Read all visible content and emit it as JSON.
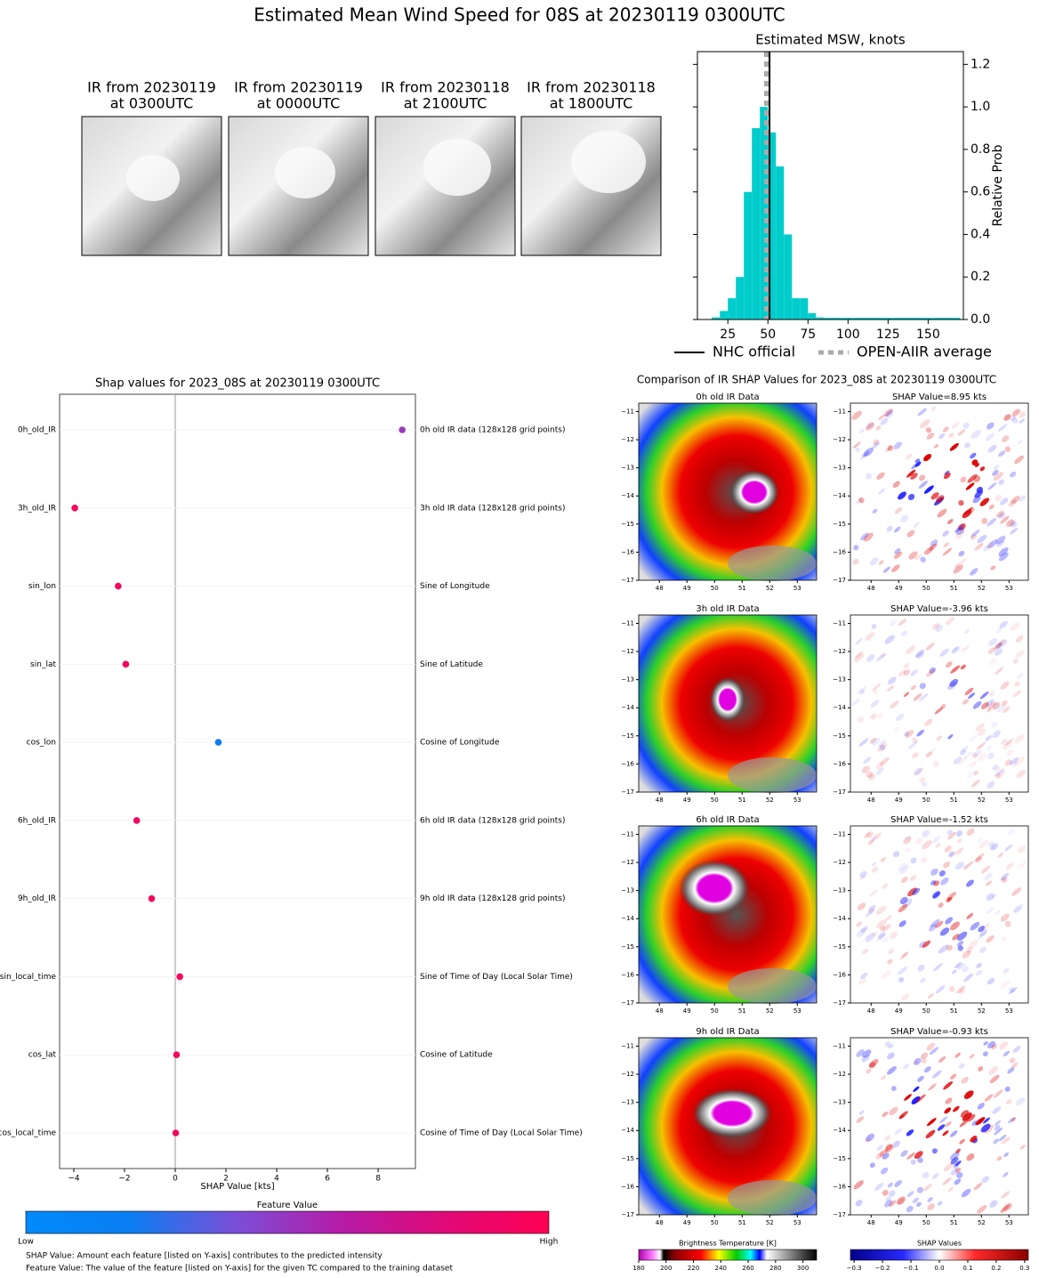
{
  "title": "Estimated Mean Wind Speed for 08S at 20230119 0300UTC",
  "ir_thumbnails": [
    {
      "lines": [
        "IR from 20230119",
        "at 0300UTC"
      ]
    },
    {
      "lines": [
        "IR from 20230119",
        "at 0000UTC"
      ]
    },
    {
      "lines": [
        "IR from 20230118",
        "at 2100UTC"
      ]
    },
    {
      "lines": [
        "IR from 20230118",
        "at 1800UTC"
      ]
    }
  ],
  "chart_data": [
    {
      "type": "histogram",
      "title": "Estimated MSW, knots",
      "ylabel": "Relative Prob",
      "color": "#00cccc",
      "bins": [
        10,
        15,
        20,
        25,
        30,
        35,
        40,
        45,
        50,
        55,
        60,
        65,
        70,
        75,
        80,
        85
      ],
      "counts": [
        0.0,
        0.01,
        0.04,
        0.1,
        0.2,
        0.6,
        0.9,
        1.0,
        0.88,
        0.72,
        0.4,
        0.1,
        0.1,
        0.03,
        0.01
      ],
      "xlim": [
        6,
        172
      ],
      "ylim": [
        0,
        1.26
      ],
      "xticks": [
        25,
        50,
        75,
        100,
        125,
        150
      ],
      "yticks": [
        {
          "value": 0,
          "label": "0.0"
        },
        0.2,
        0.4,
        0.6,
        0.8,
        {
          "value": 1,
          "label": "1.0"
        },
        1.2
      ],
      "reference_lines": [
        {
          "name": "NHC official",
          "value": 51,
          "color": "#000000",
          "style": "solid"
        },
        {
          "name": "OPEN-AIIR average",
          "value": 49,
          "color": "#aaaaaa",
          "style": "dotted"
        }
      ]
    },
    {
      "type": "dot",
      "title": "Shap values for 2023_08S at 20230119 0300UTC",
      "xlabel": "SHAP Value [kts]",
      "categories": [
        "0h_old_IR",
        "3h_old_IR",
        "sin_lon",
        "sin_lat",
        "cos_lon",
        "6h_old_IR",
        "9h_old_IR",
        "sin_local_time",
        "cos_lat",
        "cos_local_time"
      ],
      "descriptions": [
        "0h old IR data (128x128 grid points)",
        "3h old IR data (128x128 grid points)",
        "Sine of Longitude",
        "Sine of Latitude",
        "Cosine of Longitude",
        "6h old IR data (128x128 grid points)",
        "9h old IR data (128x128 grid points)",
        "Sine of Time of Day (Local Solar Time)",
        "Cosine of Latitude",
        "Cosine of Time of Day (Local Solar Time)"
      ],
      "values": [
        8.95,
        -3.96,
        -2.25,
        -1.95,
        1.7,
        -1.52,
        -0.93,
        0.18,
        0.05,
        0.02
      ],
      "colors": [
        "#9a3ab8",
        "#f5085e",
        "#f5085e",
        "#f5085e",
        "#0a7ef2",
        "#f5085e",
        "#f5085e",
        "#f5085e",
        "#f5085e",
        "#f5085e"
      ],
      "xlim": [
        -4.56,
        9.47
      ],
      "xticks": [
        {
          "value": -4,
          "label": "−4"
        },
        {
          "value": -2,
          "label": "−2"
        },
        0,
        2,
        4,
        6,
        8
      ],
      "colorbar": {
        "title": "Feature Value",
        "low_label": "Low",
        "high_label": "High",
        "colors": [
          "#008afb",
          "#0a7ef2",
          "#7a4fd8",
          "#b51ca8",
          "#e00a78",
          "#ff0052"
        ]
      },
      "notes": [
        "SHAP Value: Amount each feature [listed on Y-axis] contributes to the predicted intensity",
        "Feature Value: The value of the feature [listed on Y-axis] for the given TC compared to the training dataset"
      ]
    }
  ],
  "shap_comparison": {
    "title": "Comparison of IR SHAP Values for 2023_08S at 20230119 0300UTC",
    "panels": [
      {
        "ir_title": "0h old IR Data",
        "shap_title": "SHAP Value=8.95 kts"
      },
      {
        "ir_title": "3h old IR Data",
        "shap_title": "SHAP Value=-3.96 kts"
      },
      {
        "ir_title": "6h old IR Data",
        "shap_title": "SHAP Value=-1.52 kts"
      },
      {
        "ir_title": "9h old IR Data",
        "shap_title": "SHAP Value=-0.93 kts"
      }
    ],
    "xlim": [
      47.25,
      53.7
    ],
    "ylim": [
      -17,
      -10.7
    ],
    "xticks": [
      48,
      49,
      50,
      51,
      52,
      53
    ],
    "yticks": [
      {
        "value": -11,
        "label": "−11"
      },
      {
        "value": -12,
        "label": "−12"
      },
      {
        "value": -13,
        "label": "−13"
      },
      {
        "value": -14,
        "label": "−14"
      },
      {
        "value": -15,
        "label": "−15"
      },
      {
        "value": -16,
        "label": "−16"
      },
      {
        "value": -17,
        "label": "−17"
      }
    ],
    "ir_colorbar": {
      "label": "Brightness Temperature [K]",
      "lim": [
        180,
        310
      ],
      "ticks": [
        180,
        200,
        220,
        240,
        260,
        280,
        300
      ]
    },
    "shap_colorbar": {
      "label": "SHAP Values",
      "lim": [
        -0.313,
        0.313
      ],
      "ticks": [
        {
          "value": -0.3,
          "label": "−0.3"
        },
        {
          "value": -0.2,
          "label": "−0.2"
        },
        {
          "value": -0.1,
          "label": "−0.1"
        },
        {
          "value": 0,
          "label": "0.0"
        },
        0.1,
        0.2,
        0.3
      ]
    }
  }
}
